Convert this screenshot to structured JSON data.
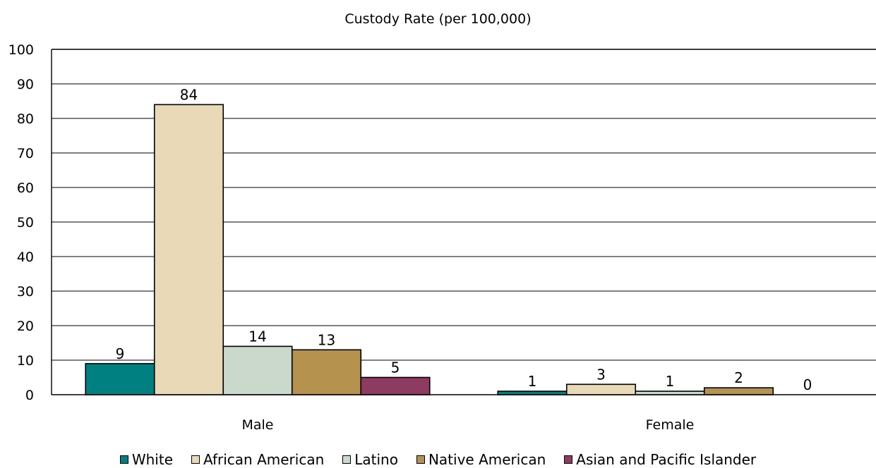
{
  "chart_data": {
    "type": "bar",
    "title": "Custody Rate (per 100,000)",
    "xlabel": "",
    "ylabel": "",
    "ylim": [
      0,
      100
    ],
    "yticks": [
      0,
      10,
      20,
      30,
      40,
      50,
      60,
      70,
      80,
      90,
      100
    ],
    "categories": [
      "Male",
      "Female"
    ],
    "series": [
      {
        "name": "White",
        "values": [
          9,
          1
        ],
        "color": "#008080"
      },
      {
        "name": "African American",
        "values": [
          84,
          3
        ],
        "color": "#EAD9B6"
      },
      {
        "name": "Latino",
        "values": [
          14,
          1
        ],
        "color": "#CBD8CC"
      },
      {
        "name": "Native American",
        "values": [
          13,
          2
        ],
        "color": "#B5924E"
      },
      {
        "name": "Asian and Pacific Islander",
        "values": [
          5,
          0
        ],
        "color": "#8E3B61"
      }
    ],
    "grid": true,
    "legend_position": "bottom"
  }
}
